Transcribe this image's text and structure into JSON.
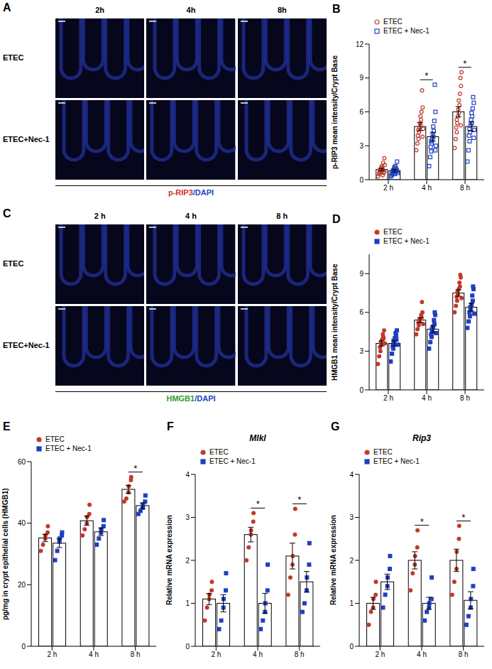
{
  "image_panels": [
    {
      "panel_label": "A",
      "columns": [
        "2h",
        "4h",
        "8h"
      ],
      "rows": [
        "ETEC",
        "ETEC+Nec-1"
      ],
      "caption": [
        "p-RIP3",
        "/DAPI"
      ],
      "colors": [
        "#d0302a",
        "#2340c8"
      ]
    },
    {
      "panel_label": "C",
      "columns": [
        "2 h",
        "4 h",
        "8 h"
      ],
      "rows": [
        "ETEC",
        "ETEC+Nec-1"
      ],
      "caption": [
        "HMGB1",
        "/DAPI"
      ],
      "colors": [
        "#2ca02c",
        "#2340c8"
      ]
    }
  ],
  "chart_data": [
    {
      "panel_label": "B",
      "type": "bar",
      "ylabel": "p-RIP3 mean intensity/Crypt Base",
      "categories": [
        "2 h",
        "4 h",
        "8 h"
      ],
      "ylim": [
        0,
        12
      ],
      "yticks": [
        0,
        3,
        6,
        9,
        12
      ],
      "legend": "top-left",
      "series": [
        {
          "name": "ETEC",
          "color": "#c0392b",
          "marker": "circle_open",
          "values": [
            0.9,
            4.7,
            6.0
          ],
          "errors": [
            0.1,
            0.35,
            0.45
          ],
          "points": [
            [
              0.3,
              0.5,
              0.6,
              0.7,
              0.8,
              0.9,
              1.0,
              1.1,
              1.2,
              0.4,
              0.8,
              1.5,
              1.9,
              0.6,
              1.3,
              0.7
            ],
            [
              2.6,
              3.2,
              3.6,
              3.9,
              4.2,
              4.4,
              4.6,
              4.8,
              5.0,
              5.3,
              5.6,
              6.0,
              6.4,
              7.9,
              4.5,
              3.8
            ],
            [
              2.8,
              3.6,
              4.2,
              4.6,
              5.0,
              5.3,
              5.6,
              5.9,
              6.2,
              6.6,
              7.0,
              7.6,
              8.3,
              9.0,
              9.5,
              4.8
            ]
          ]
        },
        {
          "name": "ETEC + Nec-1",
          "color": "#1f3fbf",
          "marker": "square_open",
          "values": [
            0.8,
            3.8,
            4.7
          ],
          "errors": [
            0.1,
            0.4,
            0.4
          ],
          "points": [
            [
              0.3,
              0.4,
              0.5,
              0.6,
              0.7,
              0.8,
              0.9,
              1.0,
              1.1,
              1.2,
              0.5,
              0.7,
              1.6,
              0.9,
              0.6,
              0.8
            ],
            [
              1.2,
              2.0,
              2.5,
              2.9,
              3.2,
              3.4,
              3.6,
              3.8,
              4.0,
              4.3,
              4.7,
              5.2,
              6.0,
              8.4,
              3.0,
              2.6
            ],
            [
              1.6,
              2.6,
              3.4,
              3.9,
              4.2,
              4.5,
              4.8,
              5.0,
              5.3,
              5.6,
              5.9,
              6.3,
              6.8,
              7.3,
              4.4,
              3.7
            ]
          ]
        }
      ],
      "significance": [
        {
          "category": "4 h",
          "label": "*"
        },
        {
          "category": "8 h",
          "label": "*"
        }
      ]
    },
    {
      "panel_label": "D",
      "type": "bar",
      "ylabel": "HMGB1 mean intensity/Crypt Base",
      "categories": [
        "2 h",
        "4 h",
        "8 h"
      ],
      "ylim": [
        0,
        10.5
      ],
      "yticks": [
        0,
        3,
        6,
        9
      ],
      "legend": "top-left",
      "series": [
        {
          "name": "ETEC",
          "color": "#c0392b",
          "marker": "circle",
          "values": [
            3.6,
            5.4,
            7.5
          ],
          "errors": [
            0.2,
            0.2,
            0.25
          ],
          "points": [
            [
              2.0,
              2.6,
              3.0,
              3.3,
              3.5,
              3.7,
              3.9,
              4.1,
              4.3,
              4.6,
              4.0,
              3.6
            ],
            [
              4.3,
              4.7,
              5.0,
              5.2,
              5.3,
              5.4,
              5.5,
              5.6,
              5.8,
              6.0,
              6.8,
              5.1
            ],
            [
              6.0,
              6.5,
              6.9,
              7.2,
              7.4,
              7.6,
              7.8,
              8.0,
              8.3,
              8.7,
              8.9,
              7.1
            ]
          ]
        },
        {
          "name": "ETEC + Nec-1",
          "color": "#1f3fbf",
          "marker": "square",
          "values": [
            3.6,
            4.7,
            6.4
          ],
          "errors": [
            0.2,
            0.25,
            0.3
          ],
          "points": [
            [
              2.2,
              2.8,
              3.2,
              3.4,
              3.6,
              3.8,
              4.0,
              4.2,
              4.4,
              4.6,
              3.9,
              3.5
            ],
            [
              3.2,
              3.7,
              4.1,
              4.3,
              4.5,
              4.7,
              4.9,
              5.1,
              5.4,
              5.8,
              6.0,
              4.4
            ],
            [
              4.8,
              5.3,
              5.7,
              6.0,
              6.2,
              6.4,
              6.6,
              6.9,
              7.3,
              7.8,
              8.0,
              5.9
            ]
          ]
        }
      ],
      "significance": []
    },
    {
      "panel_label": "E",
      "type": "bar",
      "ylabel": "pg/mg in crypt epithelial cells (HMGB1)",
      "categories": [
        "2 h",
        "4 h",
        "8 h"
      ],
      "ylim": [
        0,
        60
      ],
      "yticks": [
        0,
        20,
        40,
        60
      ],
      "legend": "top-left",
      "series": [
        {
          "name": "ETEC",
          "color": "#c0392b",
          "marker": "circle",
          "values": [
            35.2,
            40.8,
            51.0
          ],
          "errors": [
            1.2,
            1.5,
            1.3
          ],
          "points": [
            [
              31,
              33,
              35,
              36,
              37,
              39
            ],
            [
              36,
              38,
              40,
              42,
              43,
              46
            ],
            [
              47,
              48,
              50,
              52,
              54,
              55
            ]
          ]
        },
        {
          "name": "ETEC + Nec-1",
          "color": "#1f3fbf",
          "marker": "square",
          "values": [
            33.5,
            37.2,
            45.7
          ],
          "errors": [
            1.4,
            1.2,
            0.9
          ],
          "points": [
            [
              28,
              31,
              34,
              35,
              36,
              37
            ],
            [
              33,
              35,
              37,
              38,
              39,
              41
            ],
            [
              43,
              44,
              45,
              46,
              47,
              49
            ]
          ]
        }
      ],
      "significance": [
        {
          "category": "8 h",
          "label": "*"
        }
      ]
    },
    {
      "panel_label": "F",
      "type": "bar",
      "title": "Mlkl",
      "ylabel": "Relative mRNA expression",
      "categories": [
        "2 h",
        "4 h",
        "8 h"
      ],
      "ylim": [
        0,
        4
      ],
      "yticks": [
        0,
        1,
        2,
        3,
        4
      ],
      "legend": "top-left",
      "series": [
        {
          "name": "ETEC",
          "color": "#c0392b",
          "marker": "circle",
          "values": [
            1.1,
            2.6,
            2.1
          ],
          "errors": [
            0.13,
            0.17,
            0.3
          ],
          "points": [
            [
              0.6,
              0.9,
              1.1,
              1.2,
              1.3,
              1.5
            ],
            [
              2.0,
              2.3,
              2.6,
              2.7,
              2.9,
              3.1
            ],
            [
              1.2,
              1.6,
              1.9,
              2.1,
              2.6,
              3.2
            ]
          ]
        },
        {
          "name": "ETEC + Nec-1",
          "color": "#1f3fbf",
          "marker": "square",
          "values": [
            1.0,
            1.0,
            1.5
          ],
          "errors": [
            0.2,
            0.23,
            0.24
          ],
          "points": [
            [
              0.4,
              0.6,
              0.9,
              1.1,
              1.3,
              1.7
            ],
            [
              0.4,
              0.6,
              0.8,
              1.0,
              1.3,
              1.9
            ],
            [
              0.8,
              1.0,
              1.3,
              1.6,
              1.9,
              2.4
            ]
          ]
        }
      ],
      "significance": [
        {
          "category": "4 h",
          "label": "*"
        },
        {
          "category": "8 h",
          "label": "*"
        }
      ]
    },
    {
      "panel_label": "G",
      "type": "bar",
      "title": "Rip3",
      "ylabel": "Relative mRNA expression",
      "categories": [
        "2 h",
        "4 h",
        "8 h"
      ],
      "ylim": [
        0,
        4
      ],
      "yticks": [
        0,
        1,
        2,
        3,
        4
      ],
      "legend": "top-left",
      "series": [
        {
          "name": "ETEC",
          "color": "#c0392b",
          "marker": "circle",
          "values": [
            1.0,
            2.0,
            2.0
          ],
          "errors": [
            0.14,
            0.2,
            0.26
          ],
          "points": [
            [
              0.5,
              0.8,
              0.9,
              1.1,
              1.2,
              1.5
            ],
            [
              1.3,
              1.7,
              1.9,
              2.1,
              2.3,
              2.7
            ],
            [
              1.2,
              1.5,
              1.8,
              2.2,
              2.5,
              2.8
            ]
          ]
        },
        {
          "name": "ETEC + Nec-1",
          "color": "#1f3fbf",
          "marker": "square",
          "values": [
            1.5,
            1.0,
            1.07
          ],
          "errors": [
            0.18,
            0.14,
            0.2
          ],
          "points": [
            [
              0.9,
              1.2,
              1.4,
              1.6,
              1.8,
              2.1
            ],
            [
              0.6,
              0.8,
              0.9,
              1.0,
              1.1,
              1.6
            ],
            [
              0.5,
              0.7,
              0.9,
              1.1,
              1.4,
              1.8
            ]
          ]
        }
      ],
      "significance": [
        {
          "category": "4 h",
          "label": "*"
        },
        {
          "category": "8 h",
          "label": "*"
        }
      ]
    }
  ]
}
